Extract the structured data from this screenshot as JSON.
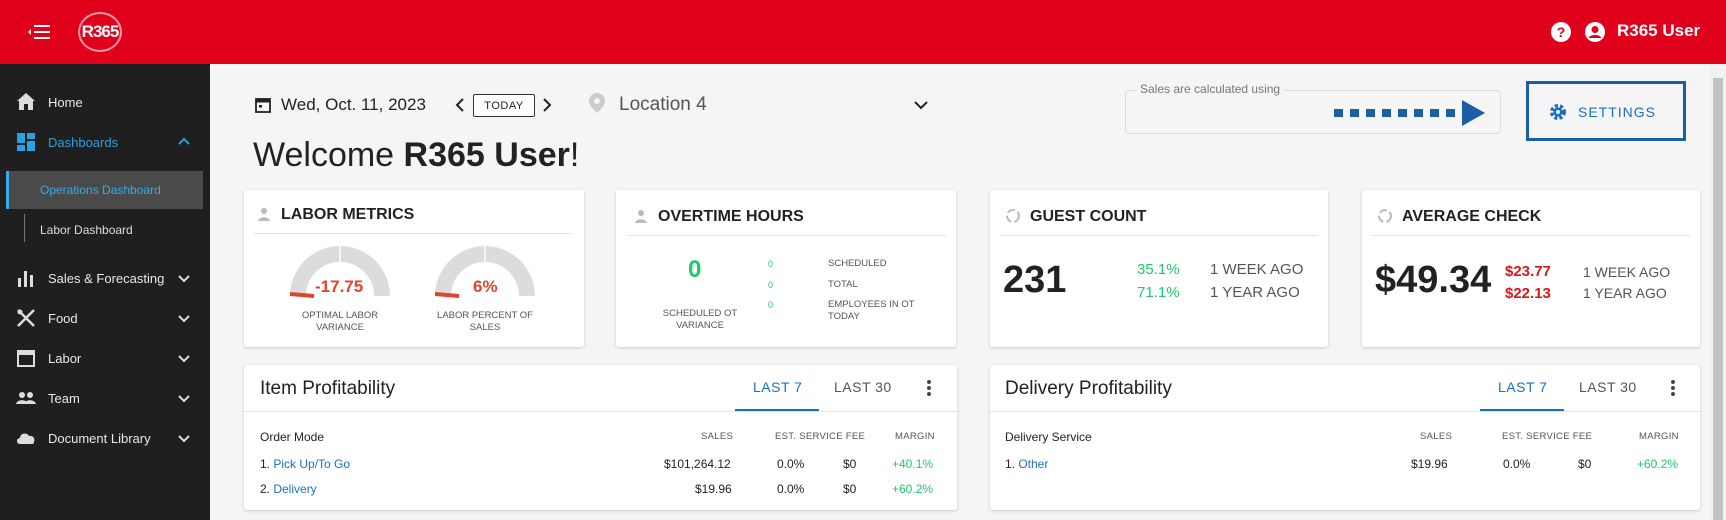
{
  "header": {
    "logo_text": "R365",
    "user_name": "R365 User",
    "brand_color": "#e1001c"
  },
  "sidebar": {
    "items": [
      {
        "label": "Home",
        "icon": "home-icon"
      },
      {
        "label": "Dashboards",
        "icon": "dashboard-icon"
      },
      {
        "label": "Sales & Forecasting",
        "icon": "bar-chart-icon"
      },
      {
        "label": "Food",
        "icon": "utensils-icon"
      },
      {
        "label": "Labor",
        "icon": "calendar-icon"
      },
      {
        "label": "Team",
        "icon": "people-icon"
      },
      {
        "label": "Document Library",
        "icon": "cloud-icon"
      }
    ],
    "sub_items": [
      "Operations Dashboard",
      "Labor Dashboard"
    ]
  },
  "toolbar": {
    "date": "Wed, Oct. 11, 2023",
    "today_label": "TODAY",
    "location": "Location 4",
    "sales_label": "Sales are calculated using",
    "settings_label": "SETTINGS"
  },
  "welcome": {
    "prefix": "Welcome ",
    "name": "R365 User",
    "suffix": "!"
  },
  "labor_metrics": {
    "title": "LABOR METRICS",
    "gauge1": {
      "value": "-17.75",
      "label_l1": "OPTIMAL LABOR",
      "label_l2": "VARIANCE"
    },
    "gauge2": {
      "value": "6%",
      "label_l1": "LABOR PERCENT OF",
      "label_l2": "SALES"
    }
  },
  "overtime": {
    "title": "OVERTIME HOURS",
    "main_value": "0",
    "main_label_l1": "SCHEDULED OT",
    "main_label_l2": "VARIANCE",
    "rows": [
      {
        "value": "0",
        "label": "SCHEDULED"
      },
      {
        "value": "0",
        "label": "TOTAL"
      },
      {
        "value": "0",
        "label_l1": "EMPLOYEES IN OT",
        "label_l2": "TODAY"
      }
    ]
  },
  "guest_count": {
    "title": "GUEST COUNT",
    "value": "231",
    "week_pct": "35.1%",
    "week_label": "1 WEEK AGO",
    "year_pct": "71.1%",
    "year_label": "1 YEAR AGO"
  },
  "average_check": {
    "title": "AVERAGE CHECK",
    "value": "$49.34",
    "week_val": "$23.77",
    "week_label": "1 WEEK AGO",
    "year_val": "$22.13",
    "year_label": "1 YEAR AGO"
  },
  "item_profitability": {
    "title": "Item Profitability",
    "tab1": "LAST 7",
    "tab2": "LAST 30",
    "col_lead": "Order Mode",
    "col_sales": "SALES",
    "col_fee": "EST. SERVICE FEE",
    "col_margin": "MARGIN",
    "rows": [
      {
        "idx": "1. ",
        "name": "Pick Up/To Go",
        "sales": "$101,264.12",
        "fee_pct": "0.0%",
        "fee": "$0",
        "margin": "+40.1%"
      },
      {
        "idx": "2. ",
        "name": "Delivery",
        "sales": "$19.96",
        "fee_pct": "0.0%",
        "fee": "$0",
        "margin": "+60.2%"
      }
    ]
  },
  "delivery_profitability": {
    "title": "Delivery Profitability",
    "tab1": "LAST 7",
    "tab2": "LAST 30",
    "col_lead": "Delivery Service",
    "col_sales": "SALES",
    "col_fee": "EST. SERVICE FEE",
    "col_margin": "MARGIN",
    "rows": [
      {
        "idx": "1. ",
        "name": "Other",
        "sales": "$19.96",
        "fee_pct": "0.0%",
        "fee": "$0",
        "margin": "+60.2%"
      }
    ]
  }
}
